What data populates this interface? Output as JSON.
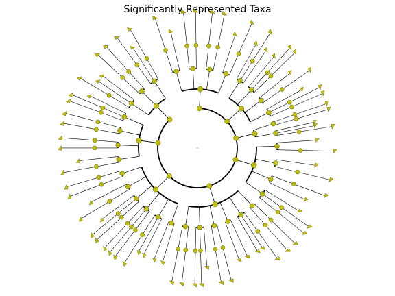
{
  "title": "Significantly Represented Taxa",
  "colors": {
    "node_fill": "#bdbd16",
    "node_stroke": "#7a7a00",
    "edge": "#000000",
    "background": "#ffffff"
  },
  "tree": {
    "clade_counts": [
      7,
      6,
      2,
      7,
      9,
      9,
      6,
      5
    ],
    "center_node": "root",
    "note_labels": []
  }
}
